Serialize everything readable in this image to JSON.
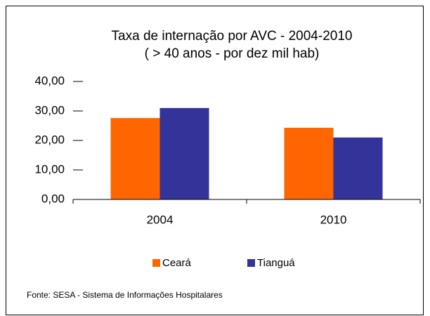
{
  "chart_data": {
    "type": "bar",
    "title": [
      "Taxa de internação por AVC - 2004-2010",
      "( > 40 anos - por dez mil hab)"
    ],
    "categories": [
      "2004",
      "2010"
    ],
    "series": [
      {
        "name": "Ceará",
        "color": "#ff6600",
        "values": [
          27.6,
          24.3
        ]
      },
      {
        "name": "Tianguá",
        "color": "#333399",
        "values": [
          31.0,
          21.0
        ]
      }
    ],
    "ylim": [
      0,
      40
    ],
    "yticks": [
      {
        "value": 0,
        "label": "0,00"
      },
      {
        "value": 10,
        "label": "10,00"
      },
      {
        "value": 20,
        "label": "20,00"
      },
      {
        "value": 30,
        "label": "30,00"
      },
      {
        "value": 40,
        "label": "40,00"
      }
    ],
    "legend": "bottom",
    "source": "Fonte: SESA - Sistema de Informações Hospitalares"
  }
}
